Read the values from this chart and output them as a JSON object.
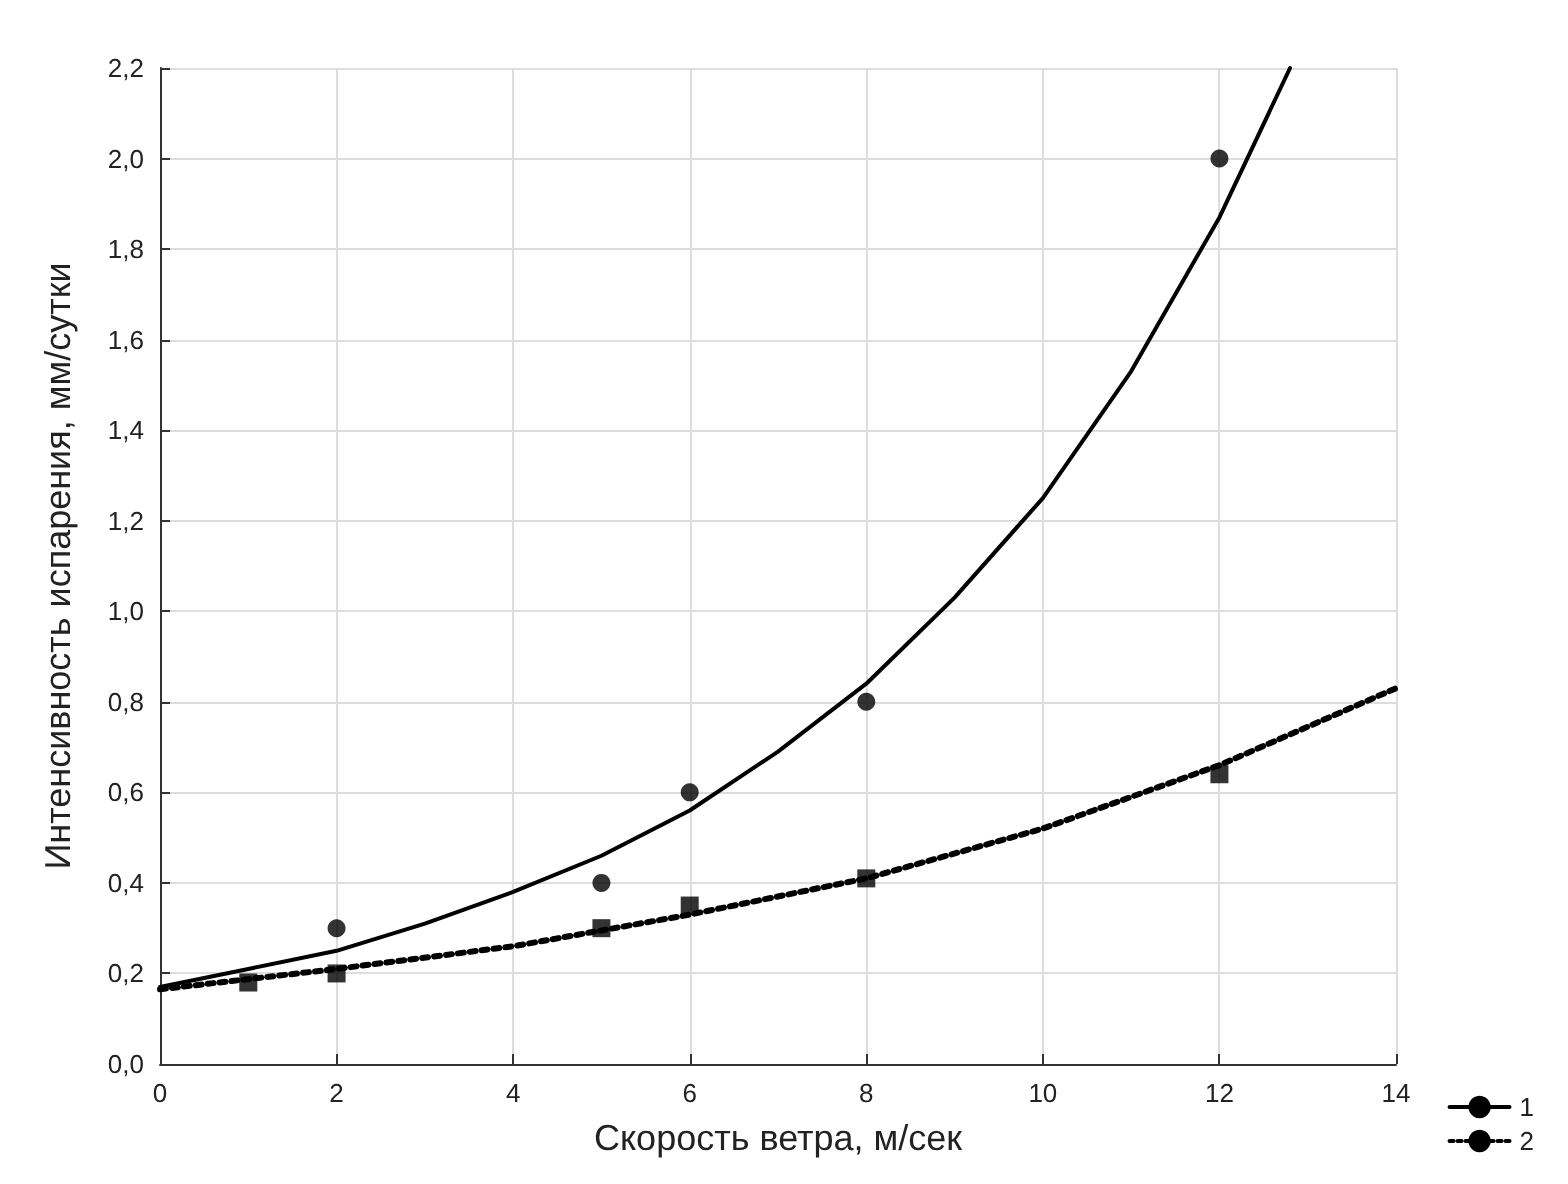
{
  "chart_data": {
    "type": "scatter",
    "xlabel": "Скорость ветра, м/сек",
    "ylabel": "Интенсивность испарения, мм/сутки",
    "xlim": [
      0,
      14
    ],
    "xticks": [
      0,
      2,
      4,
      6,
      8,
      10,
      12,
      14
    ],
    "ylim": [
      0,
      2.2
    ],
    "yticks": [
      {
        "value": 0,
        "label": "0,0"
      },
      {
        "value": 0.2,
        "label": "0,2"
      },
      {
        "value": 0.4,
        "label": "0,4"
      },
      {
        "value": 0.6,
        "label": "0,6"
      },
      {
        "value": 0.8,
        "label": "0,8"
      },
      {
        "value": 1.0,
        "label": "1,0"
      },
      {
        "value": 1.2,
        "label": "1,2"
      },
      {
        "value": 1.4,
        "label": "1,4"
      },
      {
        "value": 1.6,
        "label": "1,6"
      },
      {
        "value": 1.8,
        "label": "1,8"
      },
      {
        "value": 2.0,
        "label": "2,0"
      },
      {
        "value": 2.2,
        "label": "2,2"
      }
    ],
    "grid": true,
    "legend": "bottom right",
    "series": [
      {
        "marker": "circle",
        "color": "#000000",
        "x": [
          2,
          5,
          6,
          8,
          12
        ],
        "values": [
          0.3,
          0.4,
          0.6,
          0.8,
          2.0
        ]
      },
      {
        "marker": "square",
        "color": "#000000",
        "x": [
          1,
          2,
          5,
          6,
          8,
          12
        ],
        "values": [
          0.18,
          0.2,
          0.3,
          0.35,
          0.41,
          0.64
        ]
      },
      {
        "type": "line",
        "name": "1",
        "line_style": "solid",
        "color": "#000000",
        "x": [
          0,
          1,
          2,
          3,
          4,
          5,
          6,
          7,
          8,
          9,
          10,
          11,
          12,
          12.8
        ],
        "values": [
          0.17,
          0.21,
          0.25,
          0.31,
          0.38,
          0.46,
          0.56,
          0.69,
          0.84,
          1.03,
          1.25,
          1.53,
          1.87,
          2.2
        ]
      },
      {
        "type": "line",
        "name": "2",
        "line_style": "dotted",
        "color": "#000000",
        "x": [
          0,
          2,
          4,
          6,
          8,
          10,
          12,
          14
        ],
        "values": [
          0.165,
          0.21,
          0.26,
          0.33,
          0.41,
          0.52,
          0.66,
          0.83
        ]
      }
    ]
  }
}
